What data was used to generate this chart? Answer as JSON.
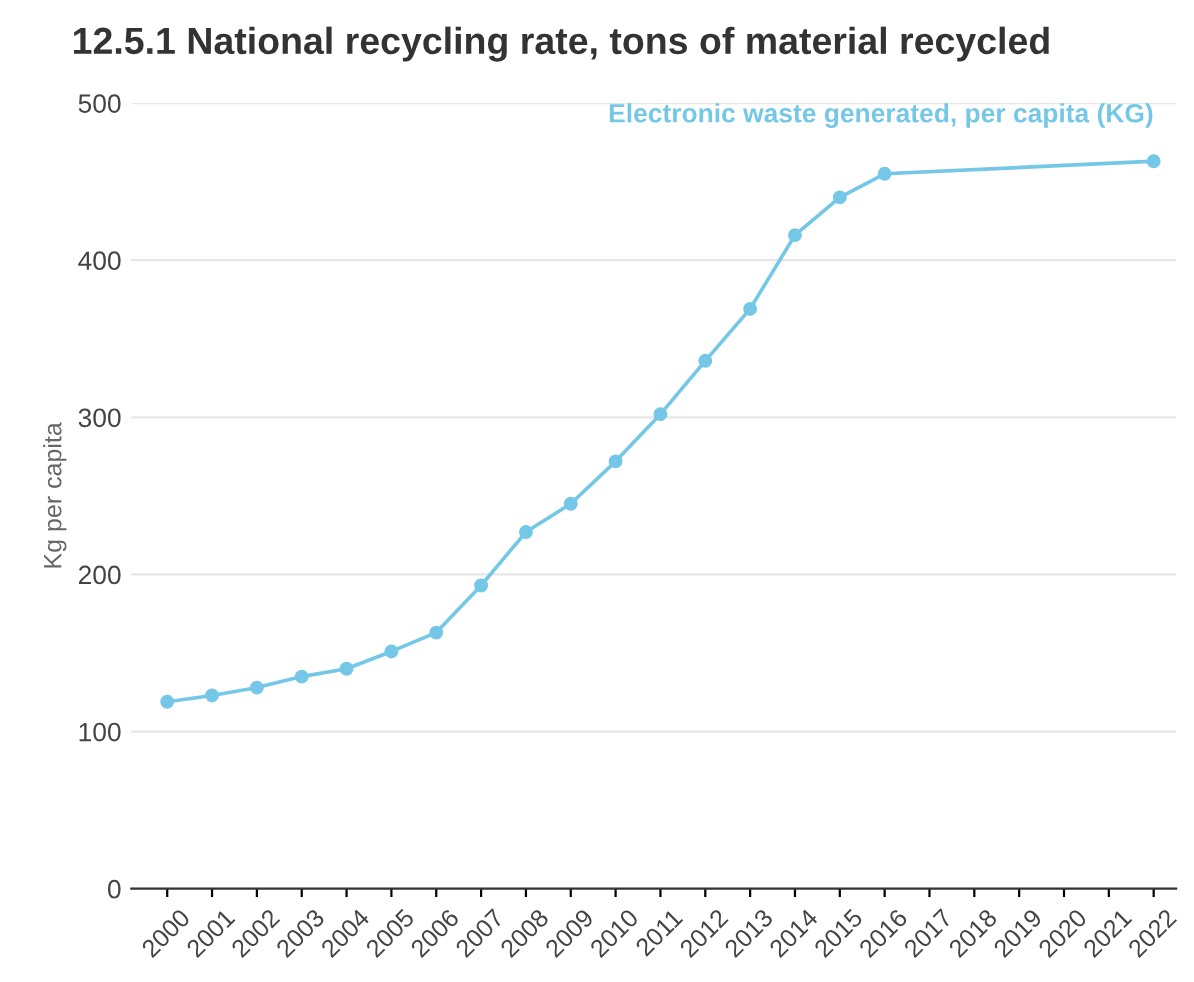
{
  "chart_data": {
    "type": "line",
    "title": "12.5.1 National recycling rate, tons of material recycled",
    "ylabel": "Kg per capita",
    "xlim": [
      1999.2,
      2022.5
    ],
    "xticks": [
      2000,
      2001,
      2002,
      2003,
      2004,
      2005,
      2006,
      2007,
      2008,
      2009,
      2010,
      2011,
      2012,
      2013,
      2014,
      2015,
      2016,
      2017,
      2018,
      2019,
      2020,
      2021,
      2022
    ],
    "ylim": [
      0,
      500
    ],
    "yticks": [
      0,
      100,
      200,
      300,
      400,
      500
    ],
    "grid": "y",
    "marker": "circle",
    "line_style": "solid",
    "legend": false,
    "series": [
      {
        "name": "Electronic waste generated, per capita (KG)",
        "color": "#74c7e6",
        "x": [
          2000,
          2001,
          2002,
          2003,
          2004,
          2005,
          2006,
          2007,
          2008,
          2009,
          2010,
          2011,
          2012,
          2013,
          2014,
          2015,
          2016,
          2022
        ],
        "values": [
          119,
          123,
          128,
          135,
          140,
          151,
          163,
          193,
          227,
          245,
          272,
          302,
          336,
          369,
          416,
          440,
          455,
          463
        ]
      }
    ]
  }
}
